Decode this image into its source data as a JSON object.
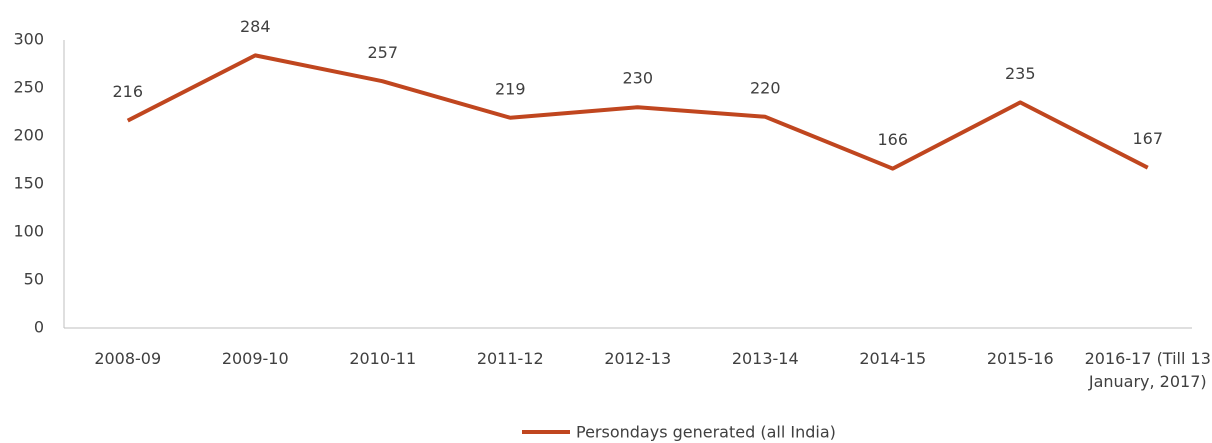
{
  "chart_data": {
    "type": "line",
    "categories": [
      "2008-09",
      "2009-10",
      "2010-11",
      "2011-12",
      "2012-13",
      "2013-14",
      "2014-15",
      "2015-16",
      "2016-17 (Till 13 January, 2017)"
    ],
    "series": [
      {
        "name": "Persondays generated (all India)",
        "color": "#c0461f",
        "values": [
          216,
          284,
          257,
          219,
          230,
          220,
          166,
          235,
          167
        ]
      }
    ],
    "ylim": [
      0,
      300
    ],
    "yticks": [
      0,
      50,
      100,
      150,
      200,
      250,
      300
    ],
    "grid": false,
    "legend": "bottom"
  }
}
